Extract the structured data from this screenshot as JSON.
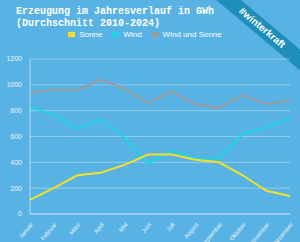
{
  "chart_data": {
    "type": "line",
    "title": "Erzeugung im Jahresverlauf in GWh",
    "subtitle": "(Durchschnitt 2010-2024)",
    "annotations": [
      "#winterkraft"
    ],
    "categories": [
      "Januar",
      "Februar",
      "März",
      "April",
      "Mai",
      "Juni",
      "Juli",
      "August",
      "September",
      "Oktober",
      "November",
      "Dezember"
    ],
    "series": [
      {
        "name": "Wind",
        "color": "#1fd6e0",
        "values": [
          830,
          770,
          660,
          730,
          590,
          390,
          490,
          430,
          430,
          620,
          670,
          740
        ]
      },
      {
        "name": "Sonne",
        "color": "#f2e02c",
        "values": [
          110,
          200,
          300,
          320,
          380,
          460,
          460,
          420,
          400,
          300,
          180,
          140
        ]
      },
      {
        "name": "Wind und Sonne",
        "color": "#9a9a9a",
        "values": [
          940,
          960,
          960,
          1040,
          970,
          860,
          950,
          850,
          820,
          920,
          850,
          880
        ]
      }
    ],
    "ylim": [
      0,
      1200
    ],
    "yticks": [
      0,
      200,
      400,
      600,
      800,
      1000,
      1200
    ],
    "grid": true,
    "legend": "top",
    "marker": "none"
  }
}
